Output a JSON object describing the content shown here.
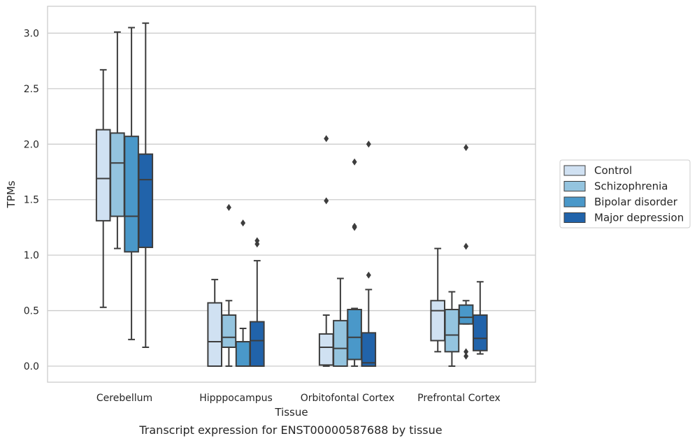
{
  "chart_data": {
    "type": "box",
    "title": "",
    "xlabel": "Tissue",
    "ylabel": "TPMs",
    "ylim": [
      -0.15,
      3.25
    ],
    "yticks": [
      "0.0",
      "0.5",
      "1.0",
      "1.5",
      "2.0",
      "2.5",
      "3.0"
    ],
    "categories": [
      "Cerebellum",
      "Hipppocampus",
      "Orbitofontal Cortex",
      "Prefrontal Cortex"
    ],
    "grid": "horizontal",
    "legend_position": "right",
    "series": [
      {
        "name": "Control",
        "color": "#d0e1f2",
        "boxes": [
          {
            "whislo": 0.53,
            "q1": 1.31,
            "med": 1.69,
            "q3": 2.13,
            "whishi": 2.67,
            "fliers": []
          },
          {
            "whislo": 0.0,
            "q1": 0.0,
            "med": 0.22,
            "q3": 0.57,
            "whishi": 0.78,
            "fliers": []
          },
          {
            "whislo": 0.0,
            "q1": 0.01,
            "med": 0.17,
            "q3": 0.29,
            "whishi": 0.46,
            "fliers": [
              1.49,
              2.05
            ]
          },
          {
            "whislo": 0.13,
            "q1": 0.23,
            "med": 0.5,
            "q3": 0.59,
            "whishi": 1.06,
            "fliers": []
          }
        ]
      },
      {
        "name": "Schizophrenia",
        "color": "#94c4df",
        "boxes": [
          {
            "whislo": 1.06,
            "q1": 1.35,
            "med": 1.83,
            "q3": 2.1,
            "whishi": 3.01,
            "fliers": []
          },
          {
            "whislo": 0.0,
            "q1": 0.17,
            "med": 0.26,
            "q3": 0.46,
            "whishi": 0.59,
            "fliers": [
              1.43
            ]
          },
          {
            "whislo": 0.0,
            "q1": 0.0,
            "med": 0.16,
            "q3": 0.41,
            "whishi": 0.79,
            "fliers": []
          },
          {
            "whislo": 0.0,
            "q1": 0.13,
            "med": 0.28,
            "q3": 0.51,
            "whishi": 0.67,
            "fliers": []
          }
        ]
      },
      {
        "name": "Bipolar disorder",
        "color": "#4a98c9",
        "boxes": [
          {
            "whislo": 0.24,
            "q1": 1.03,
            "med": 1.35,
            "q3": 2.07,
            "whishi": 3.05,
            "fliers": []
          },
          {
            "whislo": 0.0,
            "q1": 0.0,
            "med": 0.22,
            "q3": 0.22,
            "whishi": 0.34,
            "fliers": [
              1.29
            ]
          },
          {
            "whislo": 0.0,
            "q1": 0.06,
            "med": 0.26,
            "q3": 0.51,
            "whishi": 0.52,
            "fliers": [
              1.25,
              1.26,
              1.84
            ]
          },
          {
            "whislo": 0.38,
            "q1": 0.38,
            "med": 0.44,
            "q3": 0.55,
            "whishi": 0.59,
            "fliers": [
              0.09,
              0.13,
              1.08,
              1.97
            ]
          }
        ]
      },
      {
        "name": "Major depression",
        "color": "#2163aa",
        "boxes": [
          {
            "whislo": 0.17,
            "q1": 1.07,
            "med": 1.68,
            "q3": 1.91,
            "whishi": 3.09,
            "fliers": []
          },
          {
            "whislo": 0.0,
            "q1": 0.0,
            "med": 0.23,
            "q3": 0.4,
            "whishi": 0.95,
            "fliers": [
              1.1,
              1.13
            ]
          },
          {
            "whislo": 0.0,
            "q1": 0.0,
            "med": 0.03,
            "q3": 0.3,
            "whishi": 0.69,
            "fliers": [
              0.82,
              2.0
            ]
          },
          {
            "whislo": 0.11,
            "q1": 0.14,
            "med": 0.25,
            "q3": 0.46,
            "whishi": 0.76,
            "fliers": []
          }
        ]
      }
    ]
  },
  "caption": "Transcript expression for ENST00000587688 by tissue",
  "colors": {
    "grid": "#cccccc",
    "frame": "#cccccc",
    "box_edge": "#3d3d3d"
  }
}
